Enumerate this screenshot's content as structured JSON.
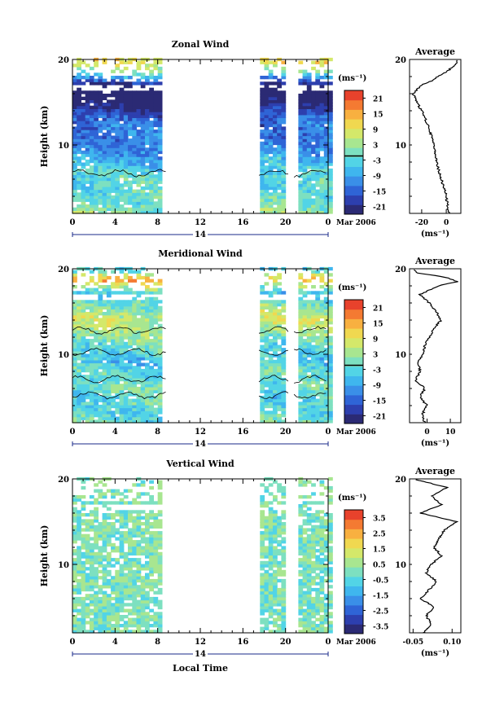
{
  "xlabel": "Local Time",
  "date_label": "Mar 2006",
  "day_label": "14",
  "colors": {
    "ramp": [
      "#2b2a74",
      "#2d3fae",
      "#2f64d6",
      "#3a8fe8",
      "#3fb6ee",
      "#52d4e6",
      "#7de0c0",
      "#a8e690",
      "#d4e86a",
      "#f0d850",
      "#f8b040",
      "#f47a32",
      "#e8422c"
    ],
    "contour": "#000000",
    "frame": "#000000"
  },
  "panels": [
    {
      "title": "Zonal Wind",
      "ylabel": "Height (km)",
      "unit": "(ms⁻¹)",
      "x_ticks": [
        "0",
        "4",
        "8",
        "12",
        "16",
        "20",
        "0"
      ],
      "y_ticks": [
        "10",
        "20"
      ],
      "colorbar_ticks": [
        "21",
        "15",
        "9",
        "3",
        "-3",
        "-9",
        "-15",
        "-21"
      ],
      "avg_title": "Average",
      "avg_x_ticks": [
        "-20",
        "0"
      ],
      "avg_xlabel": "(ms⁻¹)"
    },
    {
      "title": "Meridional Wind",
      "ylabel": "Height (km)",
      "unit": "(ms⁻¹)",
      "x_ticks": [
        "0",
        "4",
        "8",
        "12",
        "16",
        "20",
        "0"
      ],
      "y_ticks": [
        "10",
        "20"
      ],
      "colorbar_ticks": [
        "21",
        "15",
        "9",
        "3",
        "-3",
        "-9",
        "-15",
        "-21"
      ],
      "avg_title": "Average",
      "avg_x_ticks": [
        "0",
        "10"
      ],
      "avg_xlabel": "(ms⁻¹)"
    },
    {
      "title": "Vertical Wind",
      "ylabel": "Height (km)",
      "unit": "(ms⁻¹)",
      "x_ticks": [
        "0",
        "4",
        "8",
        "12",
        "16",
        "20",
        "0"
      ],
      "y_ticks": [
        "10",
        "20"
      ],
      "colorbar_ticks": [
        "3.5",
        "2.5",
        "1.5",
        "0.5",
        "-0.5",
        "-1.5",
        "-2.5",
        "-3.5"
      ],
      "avg_title": "Average",
      "avg_x_ticks": [
        "-0.05",
        "0.10"
      ],
      "avg_xlabel": "(ms⁻¹)"
    }
  ],
  "chart_data": [
    {
      "type": "heatmap",
      "title": "Zonal Wind",
      "xlabel": "Local Time",
      "ylabel": "Height (km)",
      "xlim": [
        0,
        24
      ],
      "ylim": [
        2,
        20
      ],
      "data_gaps": [
        [
          8.8,
          17.5
        ],
        [
          20.3,
          20.8
        ]
      ],
      "colorbar": {
        "range": [
          -24,
          24
        ],
        "ticks": [
          21,
          15,
          9,
          3,
          -3,
          -9,
          -15,
          -21
        ],
        "unit": "ms-1"
      },
      "profile": {
        "z": [
          2,
          3,
          4,
          5,
          6,
          7,
          8,
          9,
          10,
          11,
          12,
          13,
          14,
          15,
          16,
          17,
          17.5,
          18,
          18.5,
          19,
          19.5,
          20
        ],
        "x": [
          2,
          1,
          0,
          -2,
          -4,
          -6,
          -8,
          -9,
          -10,
          -12,
          -14,
          -17,
          -20,
          -24,
          -27,
          -20,
          -12,
          -7,
          0,
          4,
          8,
          9
        ]
      }
    },
    {
      "type": "heatmap",
      "title": "Meridional Wind",
      "xlabel": "Local Time",
      "ylabel": "Height (km)",
      "xlim": [
        0,
        24
      ],
      "ylim": [
        2,
        20
      ],
      "data_gaps": [
        [
          8.8,
          17.5
        ],
        [
          20.3,
          20.8
        ]
      ],
      "colorbar": {
        "range": [
          -24,
          24
        ],
        "ticks": [
          21,
          15,
          9,
          3,
          -3,
          -9,
          -15,
          -21
        ],
        "unit": "ms-1"
      },
      "profile": {
        "z": [
          2,
          3,
          4,
          5,
          6,
          7,
          8,
          9,
          10,
          11,
          12,
          13,
          14,
          15,
          16,
          17,
          18,
          18.5,
          19,
          19.5,
          20
        ],
        "x": [
          -1,
          -2,
          0,
          -3,
          -1,
          -5,
          -3,
          -4,
          -2,
          -1,
          1,
          3,
          6,
          4,
          1,
          -3,
          5,
          13,
          8,
          -4,
          -6
        ]
      }
    },
    {
      "type": "heatmap",
      "title": "Vertical Wind",
      "xlabel": "Local Time",
      "ylabel": "Height (km)",
      "xlim": [
        0,
        24
      ],
      "ylim": [
        2,
        20
      ],
      "data_gaps": [
        [
          8.8,
          17.5
        ],
        [
          20.3,
          20.8
        ]
      ],
      "colorbar": {
        "range": [
          -4,
          4
        ],
        "ticks": [
          3.5,
          2.5,
          1.5,
          0.5,
          -0.5,
          -1.5,
          -2.5,
          -3.5
        ],
        "unit": "ms-1"
      },
      "profile": {
        "z": [
          2,
          3,
          4,
          5,
          6,
          7,
          8,
          9,
          10,
          11,
          12,
          13,
          14,
          15,
          16,
          17,
          18,
          19,
          20
        ],
        "x": [
          -0.01,
          0.02,
          0.0,
          0.03,
          -0.02,
          0.01,
          0.04,
          0.0,
          0.02,
          0.06,
          0.03,
          0.05,
          0.07,
          0.12,
          -0.02,
          0.06,
          0.02,
          0.08,
          -0.05
        ]
      }
    }
  ]
}
